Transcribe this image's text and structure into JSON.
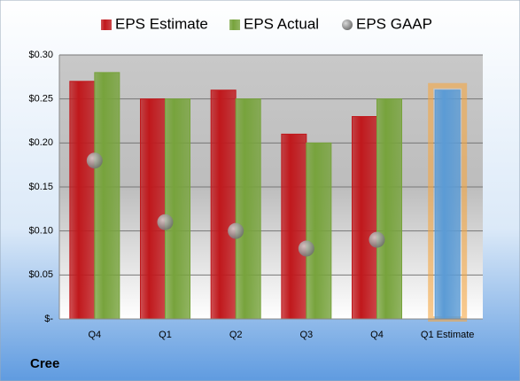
{
  "chart_data": {
    "type": "bar",
    "categories": [
      "Q4",
      "Q1",
      "Q2",
      "Q3",
      "Q4",
      "Q1 Estimate"
    ],
    "series": [
      {
        "name": "EPS Estimate",
        "color": "#c0181c",
        "colors": [
          "#c0181c",
          "#c0181c",
          "#c0181c",
          "#c0181c",
          "#c0181c",
          "#5b9bd5"
        ],
        "values": [
          0.27,
          0.25,
          0.26,
          0.21,
          0.23,
          0.26
        ]
      },
      {
        "name": "EPS Actual",
        "color": "#77a33c",
        "values": [
          0.28,
          0.25,
          0.25,
          0.2,
          0.25,
          null
        ]
      },
      {
        "name": "EPS GAAP",
        "color": "#8c8c8c",
        "marker": "bubble",
        "values": [
          0.18,
          0.11,
          0.1,
          0.08,
          0.09,
          null
        ]
      }
    ],
    "ylim": [
      0,
      0.3
    ],
    "yticks": [
      {
        "value": 0,
        "label": "$-"
      },
      {
        "value": 0.05,
        "label": "$0.05"
      },
      {
        "value": 0.1,
        "label": "$0.10"
      },
      {
        "value": 0.15,
        "label": "$0.15"
      },
      {
        "value": 0.2,
        "label": "$0.20"
      },
      {
        "value": 0.25,
        "label": "$0.25"
      },
      {
        "value": 0.3,
        "label": "$0.30"
      }
    ],
    "grid": true,
    "legend": "top",
    "company": "Cree"
  }
}
